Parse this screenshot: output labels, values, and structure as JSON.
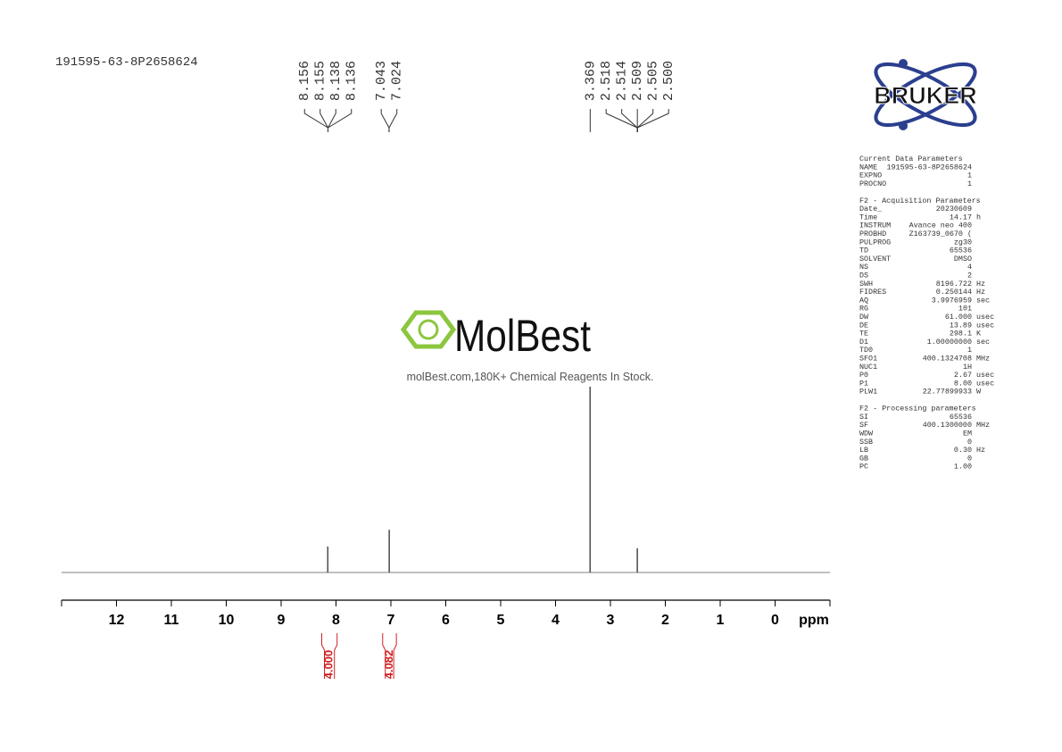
{
  "chart_data": {
    "type": "nmr",
    "sample_id": "191595-63-8P2658624",
    "x_label": "ppm",
    "xlim": [
      13,
      -1
    ],
    "xticks": [
      12,
      11,
      10,
      9,
      8,
      7,
      6,
      5,
      4,
      3,
      2,
      1,
      0
    ],
    "ylim": [
      0,
      100
    ],
    "color": "#808080",
    "x": [
      8.15,
      7.03,
      3.37,
      2.51
    ],
    "values": [
      14,
      23,
      100,
      13
    ],
    "peak_label_groups": [
      [
        8.156,
        8.155,
        8.138,
        8.136
      ],
      [
        7.043,
        7.024
      ],
      [
        3.369
      ],
      [
        2.518,
        2.514,
        2.509,
        2.505,
        {
          "value": 2.5,
          "label": "2.500"
        }
      ]
    ],
    "integrals": {
      "color": "#d02020",
      "x": [
        [
          8.26,
          7.98
        ],
        [
          7.15,
          6.9
        ]
      ],
      "values": [
        4,
        4.082
      ],
      "value_labels": [
        "4.000",
        "4.082"
      ]
    },
    "logo_text": "BRUKER",
    "watermark": {
      "logo": "MolBest",
      "text": "molBest.com,180K+ Chemical Reagents In Stock."
    },
    "parameters": [
      {
        "title": "Current Data Parameters",
        "rows": [
          [
            "NAME",
            "191595-63-8P2658624"
          ],
          [
            "EXPNO",
            "1"
          ],
          [
            "PROCNO",
            "1"
          ]
        ]
      },
      {
        "title": "F2 - Acquisition Parameters",
        "rows": [
          [
            "Date_",
            "20230609"
          ],
          [
            "Time",
            "14.17",
            "h"
          ],
          [
            "INSTRUM",
            "Avance neo 400"
          ],
          [
            "PROBHD",
            "Z163739_0670 ("
          ],
          [
            "PULPROG",
            "zg30"
          ],
          [
            "TD",
            "65536"
          ],
          [
            "SOLVENT",
            "DMSO"
          ],
          [
            "NS",
            "4"
          ],
          [
            "DS",
            "2"
          ],
          [
            "SWH",
            "8196.722",
            "Hz"
          ],
          [
            "FIDRES",
            "0.250144",
            "Hz"
          ],
          [
            "AQ",
            "3.9976959",
            "sec"
          ],
          [
            "RG",
            "101"
          ],
          [
            "DW",
            "61.000",
            "usec"
          ],
          [
            "DE",
            "13.89",
            "usec"
          ],
          [
            "TE",
            "298.1",
            "K"
          ],
          [
            "D1",
            "1.00000000",
            "sec"
          ],
          [
            "TD0",
            "1"
          ],
          [
            "SFO1",
            "400.1324708",
            "MHz"
          ],
          [
            "NUC1",
            "1H"
          ],
          [
            "P0",
            "2.67",
            "usec"
          ],
          [
            "P1",
            "8.00",
            "usec"
          ],
          [
            "PLW1",
            "22.77899933",
            "W"
          ]
        ]
      },
      {
        "title": "F2 - Processing parameters",
        "rows": [
          [
            "SI",
            "65536"
          ],
          [
            "SF",
            "400.1300000",
            "MHz"
          ],
          [
            "WDW",
            "EM"
          ],
          [
            "SSB",
            "0"
          ],
          [
            "LB",
            "0.30",
            "Hz"
          ],
          [
            "GB",
            "0"
          ],
          [
            "PC",
            "1.00"
          ]
        ]
      }
    ]
  }
}
